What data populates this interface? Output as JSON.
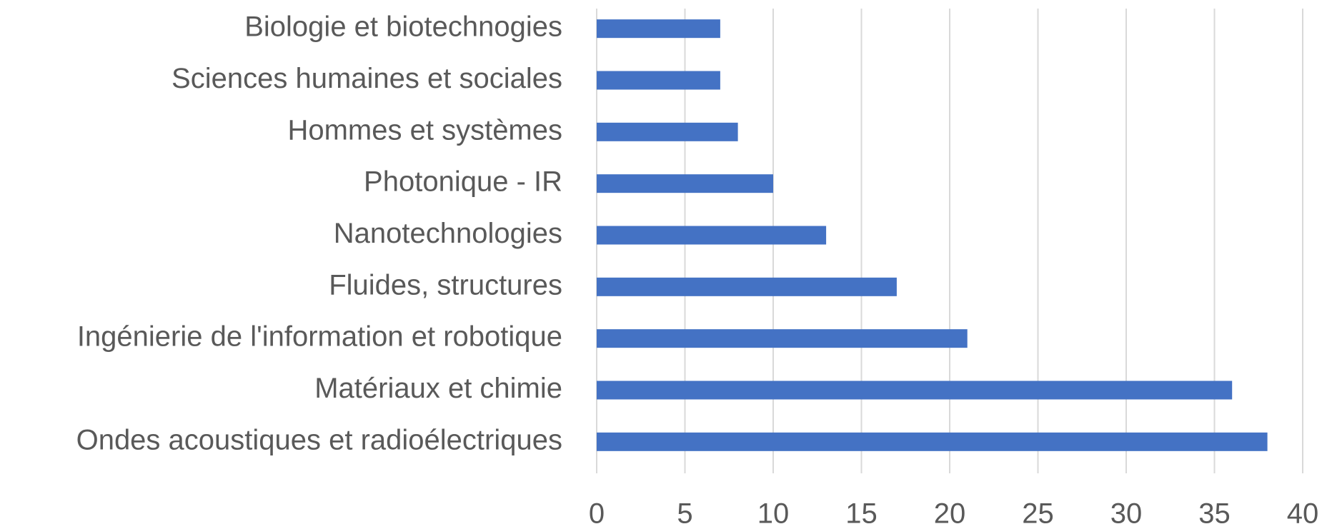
{
  "chart_data": {
    "type": "barh",
    "categories": [
      "Biologie et biotechnogies",
      "Sciences humaines et sociales",
      "Hommes et systèmes",
      "Photonique - IR",
      "Nanotechnologies",
      "Fluides, structures",
      "Ingénierie de l'information et robotique",
      "Matériaux et chimie",
      "Ondes acoustiques et radioélectriques"
    ],
    "values": [
      7,
      7,
      8,
      10,
      13,
      17,
      21,
      36,
      38
    ],
    "color": "#4472c4",
    "xlim": [
      0,
      40
    ],
    "xticks": [
      0,
      5,
      10,
      15,
      20,
      25,
      30,
      35,
      40
    ],
    "grid": true
  }
}
